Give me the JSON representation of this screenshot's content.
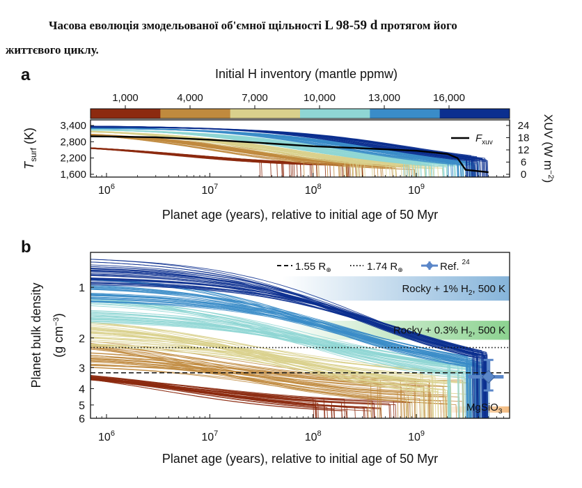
{
  "caption": {
    "line1_prefix": "Часова еволюція змодельованої об'ємної щільності ",
    "line1_planet": "L 98-59 d",
    "line1_suffix": " протягом його",
    "line2": "життєвого циклу."
  },
  "colors": {
    "c1000": "#8c2a10",
    "c4000": "#c08a3e",
    "c7000": "#d9d08c",
    "c10000": "#8fd6d4",
    "c13000": "#3a8cc8",
    "c16000": "#0b2f8f",
    "fxuv": "#000000",
    "rocky1": "#7fb0d8",
    "rocky03": "#86d08a",
    "ref": "#5a86c8",
    "mgsio3": "#f2b87a"
  },
  "chart_data": [
    {
      "panel": "a",
      "type": "line",
      "colorbar": {
        "title": "Initial H inventory (mantle ppmw)",
        "ticks": [
          "1,000",
          "4,000",
          "7,000",
          "10,000",
          "13,000",
          "16,000"
        ]
      },
      "xlabel": "Planet age (years), relative to initial age of 50 Myr",
      "xscale": "log",
      "xlim": [
        700000,
        8000000000
      ],
      "x_ticks": [
        {
          "exp": "6",
          "value": 1000000
        },
        {
          "exp": "7",
          "value": 10000000
        },
        {
          "exp": "8",
          "value": 100000000
        },
        {
          "exp": "9",
          "value": 1000000000
        }
      ],
      "ylabel_main": "T",
      "ylabel_sub": "surf",
      "ylabel_unit": " (K)",
      "ylim": [
        1600,
        3400
      ],
      "y_ticks": [
        "3,400",
        "2,800",
        "2,200",
        "1,600"
      ],
      "y_tick_values": [
        3400,
        2800,
        2200,
        1600
      ],
      "y2label": "XUV (W m",
      "y2label_sup": "−2",
      "y2label_end": ")",
      "y2lim": [
        0,
        24
      ],
      "y2_ticks": [
        "24",
        "18",
        "12",
        "6",
        "0"
      ],
      "y2_tick_values": [
        24,
        18,
        12,
        6,
        0
      ],
      "legend": {
        "label_main": "F",
        "label_sub": "xuv",
        "position": "top-right"
      },
      "fxuv_series": {
        "x": [
          700000,
          1000000,
          3000000,
          10000000,
          30000000,
          100000000,
          300000000,
          1000000000,
          2000000000,
          2500000000,
          3000000000,
          5000000000
        ],
        "y": [
          18.7,
          18.6,
          18.2,
          17.0,
          15.5,
          13.8,
          12.8,
          11.6,
          10.0,
          8.0,
          2.2,
          1.0
        ]
      },
      "series_families": [
        {
          "ppmw": 1000,
          "color_key": "c1000",
          "start": [
            2780,
            2700
          ],
          "end": [
            1950,
            1850
          ],
          "tstar": [
            3000000,
            8000000
          ],
          "cut": [
            30000000,
            300000000
          ]
        },
        {
          "ppmw": 4000,
          "color_key": "c4000",
          "start": [
            3250,
            3150
          ],
          "end": [
            1850,
            1700
          ],
          "tstar": [
            8000000,
            40000000
          ],
          "cut": [
            80000000,
            1000000000
          ]
        },
        {
          "ppmw": 7000,
          "color_key": "c7000",
          "start": [
            3300,
            3220
          ],
          "end": [
            1850,
            1700
          ],
          "tstar": [
            20000000,
            80000000
          ],
          "cut": [
            200000000,
            2000000000
          ]
        },
        {
          "ppmw": 10000,
          "color_key": "c10000",
          "start": [
            3330,
            3260
          ],
          "end": [
            1850,
            1700
          ],
          "tstar": [
            50000000,
            200000000
          ],
          "cut": [
            700000000,
            3000000000
          ]
        },
        {
          "ppmw": 13000,
          "color_key": "c13000",
          "start": [
            3360,
            3300
          ],
          "end": [
            1850,
            1700
          ],
          "tstar": [
            150000000,
            500000000
          ],
          "cut": [
            2000000000,
            4000000000
          ]
        },
        {
          "ppmw": 16000,
          "color_key": "c16000",
          "start": [
            3400,
            3340
          ],
          "end": [
            1900,
            1760
          ],
          "tstar": [
            300000000,
            1000000000
          ],
          "cut": [
            3000000000,
            5000000000
          ]
        }
      ]
    },
    {
      "panel": "b",
      "type": "line",
      "xlabel": "Planet age (years), relative to initial age of 50 Myr",
      "xscale": "log",
      "xlim": [
        700000,
        8000000000
      ],
      "x_ticks": [
        {
          "exp": "6",
          "value": 1000000
        },
        {
          "exp": "7",
          "value": 10000000
        },
        {
          "exp": "8",
          "value": 100000000
        },
        {
          "exp": "9",
          "value": 1000000000
        }
      ],
      "ylabel": "Planet bulk density",
      "ylabel_unit": "(g cm",
      "ylabel_unit_sup": "−3",
      "ylabel_unit_end": ")",
      "yscale": "log",
      "ylim": [
        0.62,
        6
      ],
      "y_ticks": [
        "1",
        "2",
        "3",
        "4",
        "5",
        "6"
      ],
      "y_tick_values": [
        1,
        2,
        3,
        4,
        5,
        6
      ],
      "legend": {
        "dashed_label": "1.55 R",
        "dotted_label": "1.74 R",
        "earth_symbol": "⊕",
        "ref_label": "Ref.",
        "ref_sup": "24",
        "position": "top-right"
      },
      "reference_lines": [
        {
          "style": "dashed",
          "label": "1.55 R⊕",
          "density": 3.22
        },
        {
          "style": "dotted",
          "label": "1.74 R⊕",
          "density": 2.28
        }
      ],
      "bands": [
        {
          "label_pre": "Rocky + 1% H",
          "label_sub": "2",
          "label_post": ", 500 K",
          "color_key": "rocky1",
          "density_range": [
            0.86,
            1.2
          ],
          "x_start": 50000000
        },
        {
          "label_pre": "Rocky + 0.3% H",
          "label_sub": "2",
          "label_post": ", 500 K",
          "color_key": "rocky03",
          "density_range": [
            1.58,
            2.05
          ],
          "x_start": 50000000
        }
      ],
      "mgsio3": {
        "label_main": "MgSiO",
        "label_sub": "3",
        "density_range": [
          5.1,
          5.55
        ],
        "x_start": 1500000000
      },
      "ref_point": {
        "x": 5000000000,
        "density": 3.4,
        "x_err": [
          3200000000,
          7000000000
        ],
        "density_err": [
          2.7,
          4.1
        ]
      },
      "series_families": [
        {
          "ppmw": 1000,
          "color_key": "c1000",
          "start": [
            2.9,
            3.3
          ],
          "end": [
            4.8,
            5.8
          ],
          "tstar": [
            3000000,
            15000000
          ],
          "cut": [
            100000000,
            1000000000
          ]
        },
        {
          "ppmw": 4000,
          "color_key": "c4000",
          "start": [
            1.9,
            2.9
          ],
          "end": [
            3.6,
            5.3
          ],
          "tstar": [
            8000000,
            60000000
          ],
          "cut": [
            300000000,
            3000000000
          ]
        },
        {
          "ppmw": 7000,
          "color_key": "c7000",
          "start": [
            1.4,
            2.2
          ],
          "end": [
            3.2,
            4.8
          ],
          "tstar": [
            20000000,
            120000000
          ],
          "cut": [
            800000000,
            4000000000
          ]
        },
        {
          "ppmw": 10000,
          "color_key": "c10000",
          "start": [
            1.05,
            1.6
          ],
          "end": [
            3.1,
            3.9
          ],
          "tstar": [
            50000000,
            250000000
          ],
          "cut": [
            2000000000,
            5000000000
          ]
        },
        {
          "ppmw": 13000,
          "color_key": "c13000",
          "start": [
            0.8,
            1.2
          ],
          "end": [
            3.1,
            3.6
          ],
          "tstar": [
            100000000,
            400000000
          ],
          "cut": [
            3000000000,
            5000000000
          ]
        },
        {
          "ppmw": 16000,
          "color_key": "c16000",
          "start": [
            0.62,
            0.95
          ],
          "end": [
            3.15,
            3.45
          ],
          "tstar": [
            200000000,
            700000000
          ],
          "cut": [
            3500000000,
            5000000000
          ]
        }
      ]
    }
  ]
}
